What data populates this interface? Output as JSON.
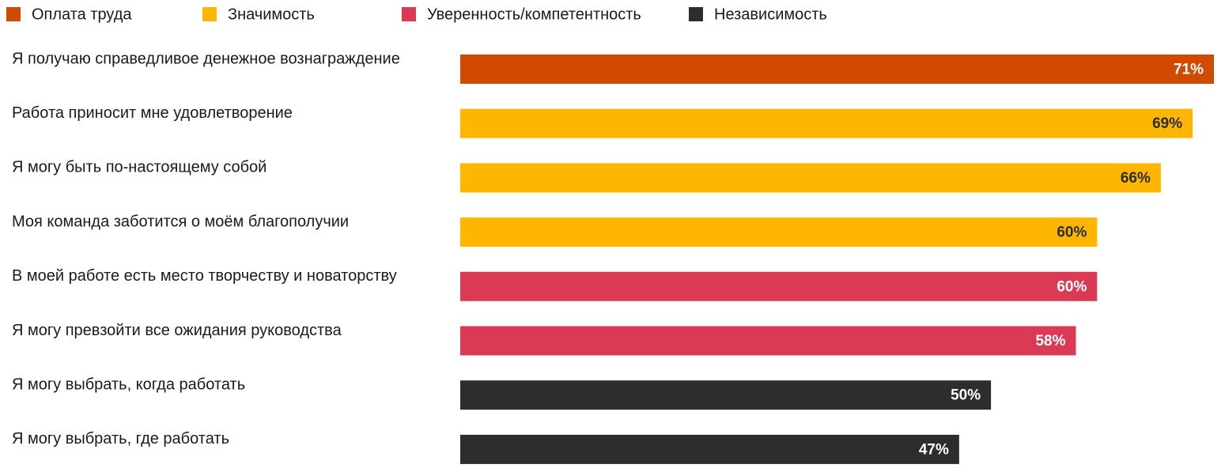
{
  "chart_data": {
    "type": "bar",
    "orientation": "horizontal",
    "categories": [
      "Я получаю справедливое денежное вознаграждение",
      "Работа приносит мне удовлетворение",
      "Я могу быть по-настоящему собой",
      "Моя команда заботится о моём благополучии",
      "В моей работе есть место творчеству и новаторству",
      "Я могу превзойти все ожидания руководства",
      "Я могу выбрать, когда работать",
      "Я могу выбрать, где работать"
    ],
    "series": [
      {
        "name": "Оплата труда",
        "color": "#d04a02",
        "label_color": "#ffffff",
        "values": [
          71,
          null,
          null,
          null,
          null,
          null,
          null,
          null
        ],
        "value_labels": [
          "71%",
          null,
          null,
          null,
          null,
          null,
          null,
          null
        ]
      },
      {
        "name": "Значимость",
        "color": "#ffb600",
        "label_color": "#2d2d2d",
        "values": [
          null,
          69,
          66,
          60,
          null,
          null,
          null,
          null
        ],
        "value_labels": [
          null,
          "69%",
          "66%",
          "60%",
          null,
          null,
          null,
          null
        ]
      },
      {
        "name": "Уверенность/компетентность",
        "color": "#db3a55",
        "label_color": "#ffffff",
        "values": [
          null,
          null,
          null,
          null,
          60,
          58,
          null,
          null
        ],
        "value_labels": [
          null,
          null,
          null,
          null,
          "60%",
          "58%",
          null,
          null
        ]
      },
      {
        "name": "Независимость",
        "color": "#2d2d2d",
        "label_color": "#ffffff",
        "values": [
          null,
          null,
          null,
          null,
          null,
          null,
          50,
          47
        ],
        "value_labels": [
          null,
          null,
          null,
          null,
          null,
          null,
          "50%",
          "47%"
        ]
      }
    ],
    "legend": "top"
  }
}
